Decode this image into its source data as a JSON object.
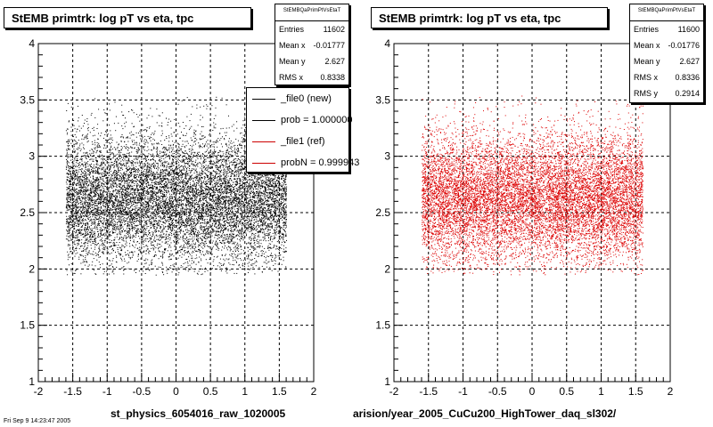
{
  "chart_data": [
    {
      "type": "scatter",
      "title": "StEMB primtrk: log pT vs eta, tpc",
      "xlim": [
        -2,
        2
      ],
      "ylim": [
        1,
        4
      ],
      "xticks": [
        "-2",
        "-1.5",
        "-1",
        "-0.5",
        "0",
        "0.5",
        "1",
        "1.5",
        "2"
      ],
      "yticks": [
        "1",
        "1.5",
        "2",
        "2.5",
        "3",
        "3.5",
        "4"
      ],
      "grid": true,
      "marker_color": "#000000",
      "point_count": 11602,
      "distribution": {
        "x_range": [
          -1.6,
          1.6
        ],
        "y_mean": 2.627,
        "y_rms": 0.29,
        "y_range": [
          1.95,
          3.55
        ]
      },
      "stats": {
        "header": "StEMBQaPrimPtVsEtaT",
        "rows": [
          {
            "label": "Entries",
            "value": "11602"
          },
          {
            "label": "Mean x",
            "value": "-0.01777"
          },
          {
            "label": "Mean y",
            "value": "2.627"
          },
          {
            "label": "RMS x",
            "value": "0.8338"
          }
        ]
      },
      "legend": {
        "entries": [
          {
            "label": "_file0 (new)",
            "color": "#000000"
          },
          {
            "label": "prob = 1.000000",
            "color": "#000000"
          },
          {
            "label": "_file1 (ref)",
            "color": "#cc0000"
          },
          {
            "label": "probN = 0.999943",
            "color": "#cc0000"
          }
        ]
      },
      "footer": "st_physics_6054016_raw_1020005"
    },
    {
      "type": "scatter",
      "title": "StEMB primtrk: log pT vs eta, tpc",
      "xlim": [
        -2,
        2
      ],
      "ylim": [
        1,
        4
      ],
      "xticks": [
        "-2",
        "-1.5",
        "-1",
        "-0.5",
        "0",
        "0.5",
        "1",
        "1.5",
        "2"
      ],
      "yticks": [
        "1",
        "1.5",
        "2",
        "2.5",
        "3",
        "3.5",
        "4"
      ],
      "grid": true,
      "marker_color": "#dd0000",
      "point_count": 11600,
      "distribution": {
        "x_range": [
          -1.6,
          1.6
        ],
        "y_mean": 2.627,
        "y_rms": 0.2914,
        "y_range": [
          1.95,
          3.55
        ]
      },
      "stats": {
        "header": "StEMBQaPrimPtVsEtaT",
        "rows": [
          {
            "label": "Entries",
            "value": "11600"
          },
          {
            "label": "Mean x",
            "value": "-0.01776"
          },
          {
            "label": "Mean y",
            "value": "2.627"
          },
          {
            "label": "RMS x",
            "value": "0.8336"
          },
          {
            "label": "RMS y",
            "value": "0.2914"
          }
        ]
      },
      "footer": "arision/year_2005_CuCu200_HighTower_daq_sl302/"
    }
  ],
  "corner_text": "Fri Sep 9 14:23:47 2005"
}
